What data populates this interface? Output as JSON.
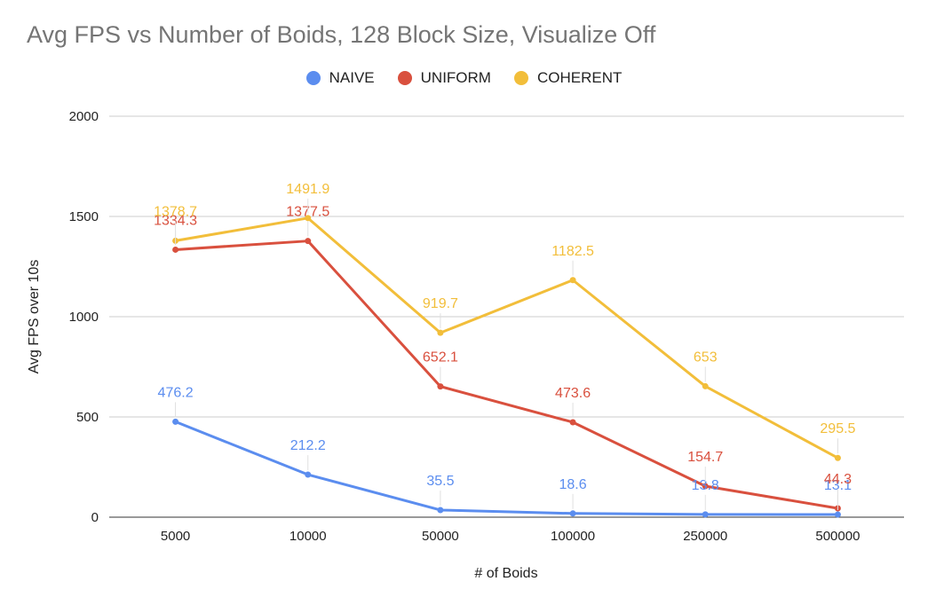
{
  "chart_data": {
    "type": "line",
    "title": "Avg FPS vs Number of Boids, 128 Block Size, Visualize Off",
    "xlabel": "# of Boids",
    "ylabel": "Avg FPS over 10s",
    "categories": [
      "5000",
      "10000",
      "50000",
      "100000",
      "250000",
      "500000"
    ],
    "ylim": [
      0,
      2000
    ],
    "yticks": [
      "0",
      "500",
      "1000",
      "1500",
      "2000"
    ],
    "grid": true,
    "legend_position": "top",
    "series": [
      {
        "name": "NAIVE",
        "color": "#5b8def",
        "values": [
          476.2,
          212.2,
          35.5,
          18.6,
          13.8,
          13.1
        ],
        "labels": [
          "476.2",
          "212.2",
          "35.5",
          "18.6",
          "13.8",
          "13.1"
        ]
      },
      {
        "name": "UNIFORM",
        "color": "#d9503e",
        "values": [
          1334.3,
          1377.5,
          652.1,
          473.6,
          154.7,
          44.3
        ],
        "labels": [
          "1334.3",
          "1377.5",
          "652.1",
          "473.6",
          "154.7",
          "44.3"
        ]
      },
      {
        "name": "COHERENT",
        "color": "#f2be3a",
        "values": [
          1378.7,
          1491.9,
          919.7,
          1182.5,
          653,
          295.5
        ],
        "labels": [
          "1378.7",
          "1491.9",
          "919.7",
          "1182.5",
          "653",
          "295.5"
        ]
      }
    ]
  }
}
